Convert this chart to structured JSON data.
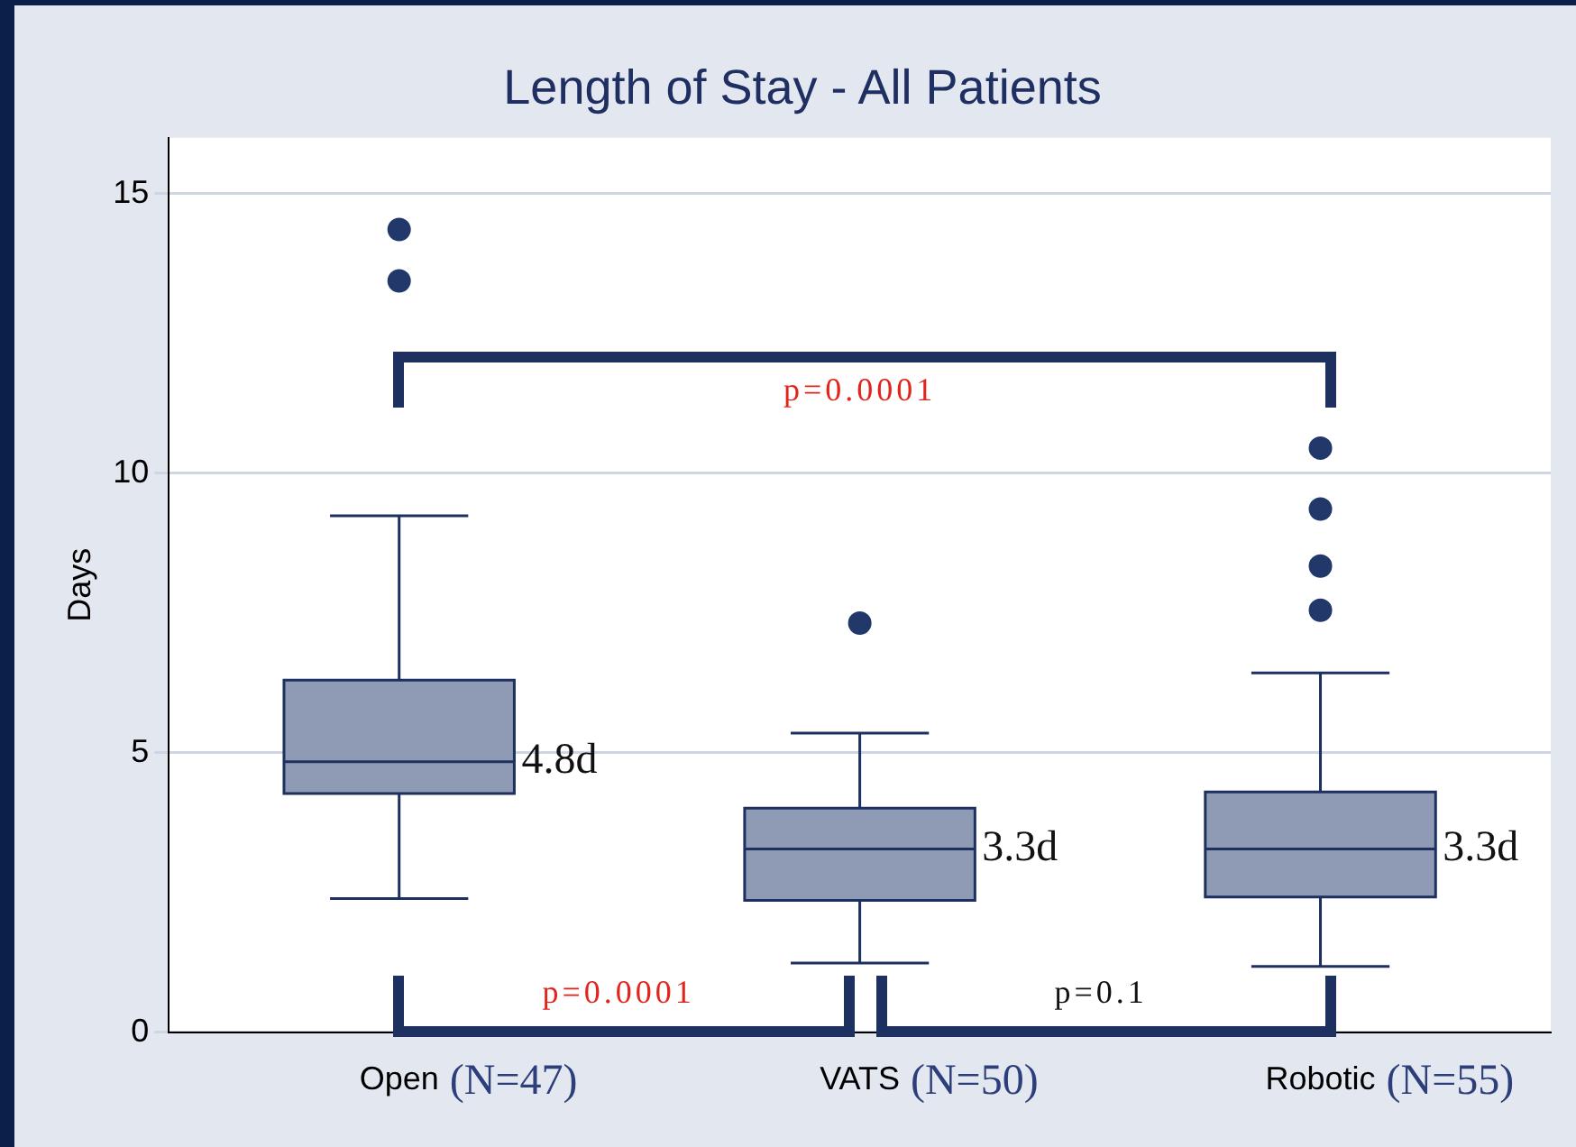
{
  "chart_data": {
    "type": "box",
    "title": "Length of Stay - All Patients",
    "ylabel": "Days",
    "categories": [
      "Open",
      "VATS",
      "Robotic"
    ],
    "boxes": [
      {
        "low": 2.39,
        "q1": 4.27,
        "median": 4.84,
        "q3": 6.3,
        "high": 9.24,
        "outliers": [
          14.36,
          13.44
        ]
      },
      {
        "low": 1.24,
        "q1": 2.36,
        "median": 3.28,
        "q3": 4.01,
        "high": 5.35,
        "outliers": [
          7.32
        ]
      },
      {
        "low": 1.18,
        "q1": 2.42,
        "median": 3.28,
        "q3": 4.3,
        "high": 6.43,
        "outliers": [
          10.45,
          9.36,
          8.34,
          7.55
        ]
      }
    ],
    "color": "#8f9bb5",
    "ylim": [
      0,
      16
    ],
    "yticks": [
      0,
      5,
      10,
      15
    ],
    "grid": "y",
    "legend": false,
    "marker": "circle",
    "annotations": [
      {
        "text": "4.8d",
        "x": "Open",
        "y": 4.84
      },
      {
        "text": "3.3d",
        "x": "VATS",
        "y": 3.28
      },
      {
        "text": "3.3d",
        "x": "Robotic",
        "y": 3.28
      },
      "(N=47)",
      "(N=50)",
      "(N=55)",
      "p=0.0001",
      "p=0.0001",
      "p=0.1"
    ]
  }
}
